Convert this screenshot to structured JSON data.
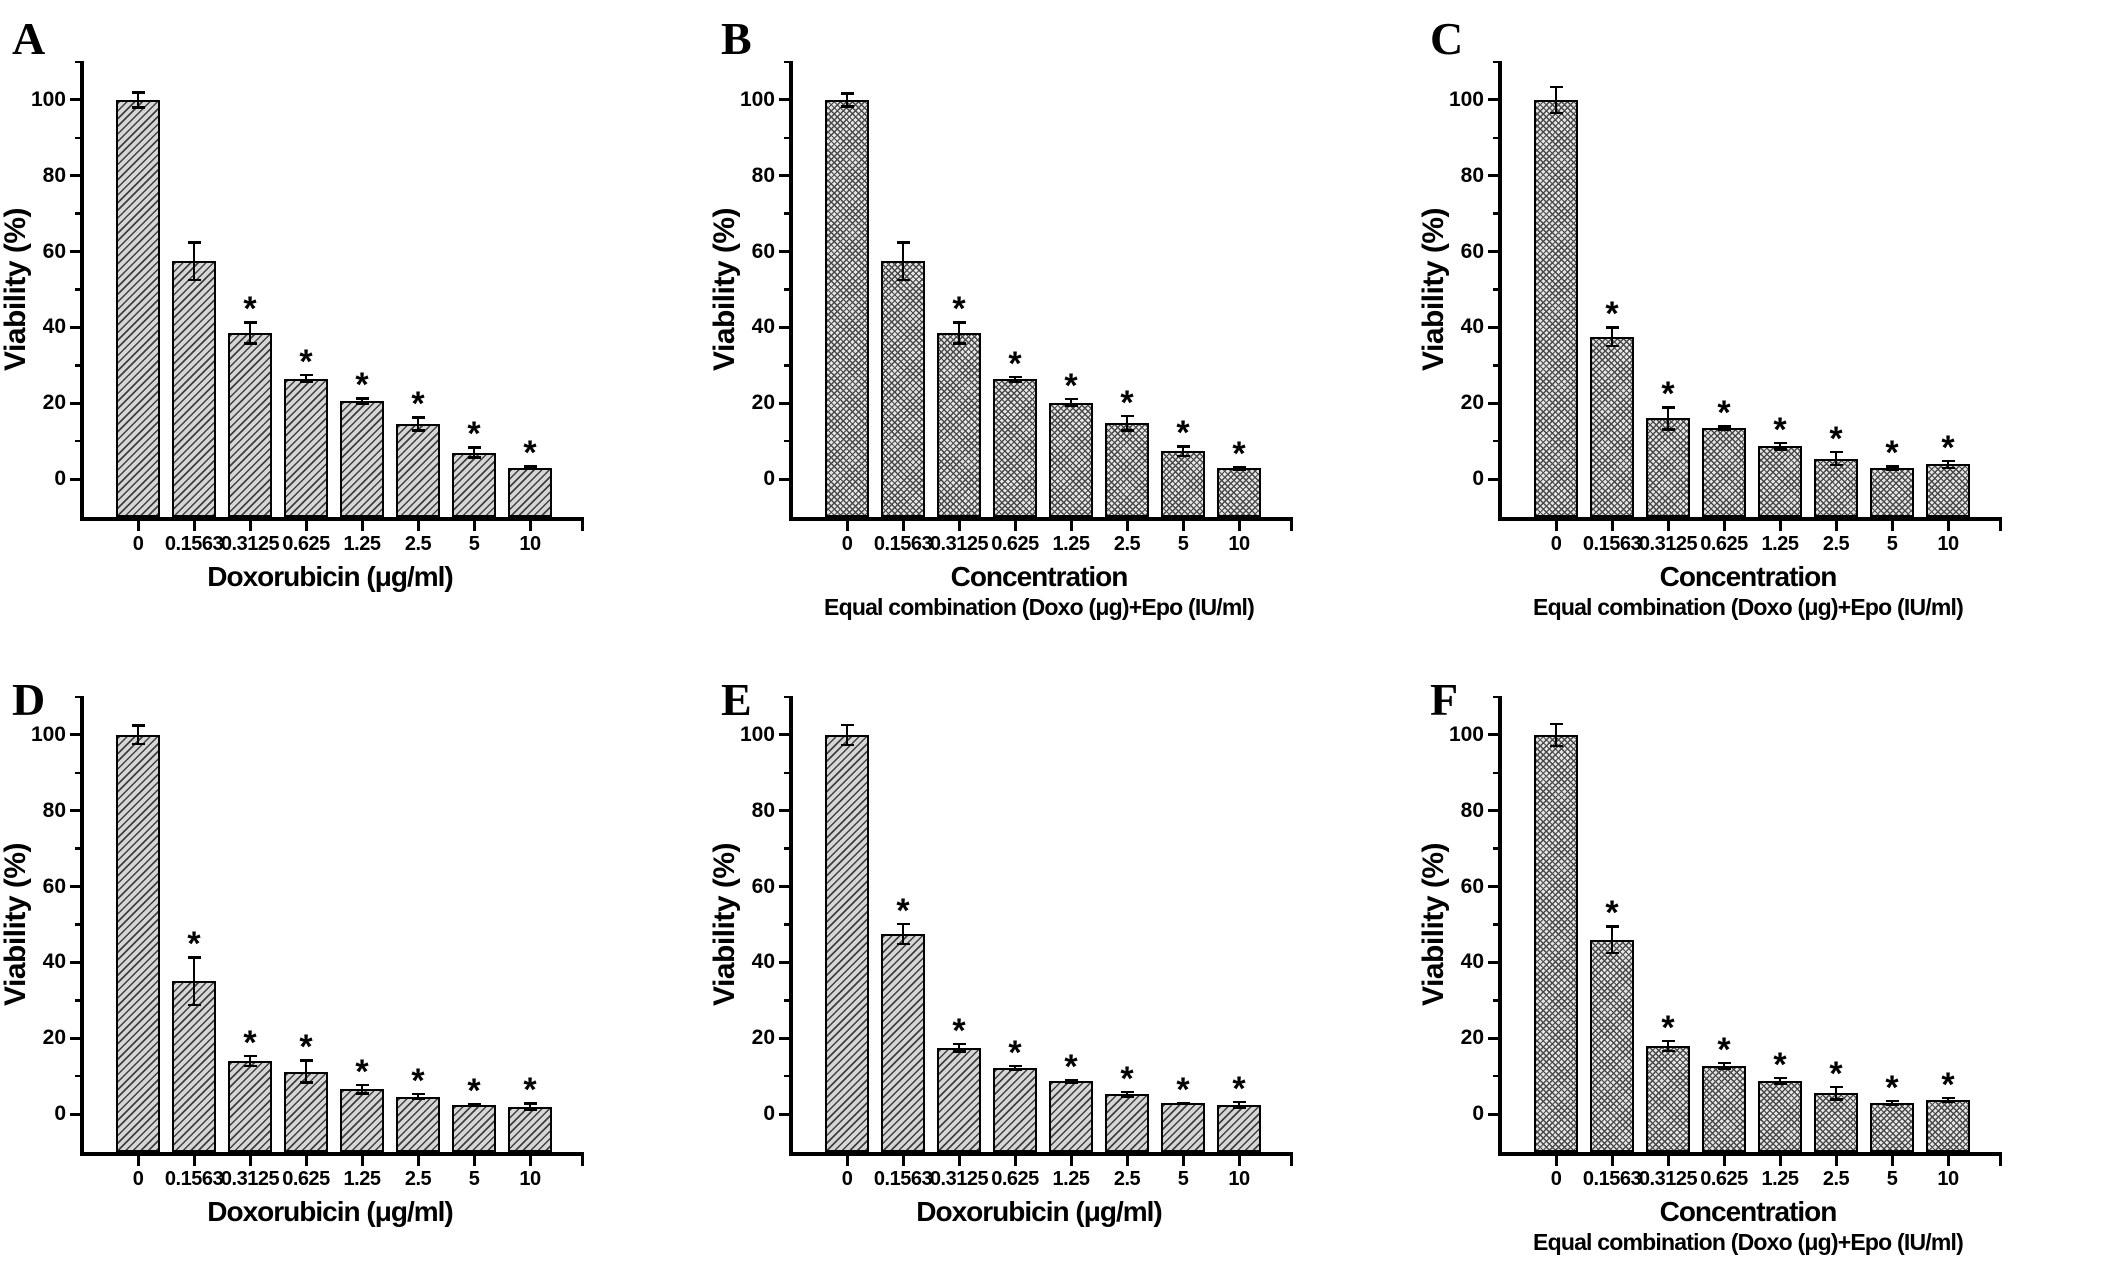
{
  "figure": {
    "ylabel": "Viability (%)",
    "categories": [
      "0",
      "0.1563",
      "0.3125",
      "0.625",
      "1.25",
      "2.5",
      "5",
      "10"
    ],
    "ytick_labels": [
      "0",
      "20",
      "40",
      "60",
      "80",
      "100"
    ],
    "significance_marker": "*",
    "bar_fill_color": "#d6d6d6",
    "hatch_line_color": "#3f3f3f",
    "axis_color": "#000000"
  },
  "chart_data": [
    {
      "type": "bar",
      "panel": "A",
      "xlabel": "Doxorubicin (μg/ml)",
      "xlabel2": "",
      "ylabel": "Viability (%)",
      "hatch": "diagonal",
      "categories": [
        "0",
        "0.1563",
        "0.3125",
        "0.625",
        "1.25",
        "2.5",
        "5",
        "10"
      ],
      "values": [
        100,
        57.5,
        38.5,
        26.5,
        20.5,
        14.5,
        7,
        3
      ],
      "errors": [
        2,
        5,
        2.8,
        1,
        0.8,
        1.8,
        1.4,
        0.4
      ],
      "significant": [
        false,
        false,
        true,
        true,
        true,
        true,
        true,
        true
      ],
      "ylim": [
        -10,
        110
      ],
      "yticks": [
        0,
        20,
        40,
        60,
        80,
        100
      ],
      "yticks_minor": [
        10,
        30,
        50,
        70,
        90,
        110
      ]
    },
    {
      "type": "bar",
      "panel": "B",
      "xlabel": "Concentration",
      "xlabel2": "Equal combination (Doxo (μg)+Epo (IU/ml)",
      "ylabel": "Viability (%)",
      "hatch": "crosshatch",
      "categories": [
        "0",
        "0.1563",
        "0.3125",
        "0.625",
        "1.25",
        "2.5",
        "5",
        "10"
      ],
      "values": [
        100,
        57.5,
        38.5,
        26.3,
        20.2,
        14.7,
        7.3,
        2.8
      ],
      "errors": [
        1.8,
        5,
        2.8,
        0.7,
        1,
        2,
        1.3,
        0.3
      ],
      "significant": [
        false,
        false,
        true,
        true,
        true,
        true,
        true,
        true
      ],
      "ylim": [
        -10,
        110
      ],
      "yticks": [
        0,
        20,
        40,
        60,
        80,
        100
      ],
      "yticks_minor": [
        10,
        30,
        50,
        70,
        90,
        110
      ]
    },
    {
      "type": "bar",
      "panel": "C",
      "xlabel": "Concentration",
      "xlabel2": "Equal combination (Doxo (μg)+Epo (IU/ml)",
      "ylabel": "Viability (%)",
      "hatch": "crosshatch",
      "categories": [
        "0",
        "0.1563",
        "0.3125",
        "0.625",
        "1.25",
        "2.5",
        "5",
        "10"
      ],
      "values": [
        100,
        37.5,
        16,
        13.5,
        8.7,
        5.4,
        2.9,
        3.9
      ],
      "errors": [
        3.5,
        2.5,
        3,
        0.5,
        0.9,
        1.8,
        0.5,
        1
      ],
      "significant": [
        false,
        true,
        true,
        true,
        true,
        true,
        true,
        true
      ],
      "ylim": [
        -10,
        110
      ],
      "yticks": [
        0,
        20,
        40,
        60,
        80,
        100
      ],
      "yticks_minor": [
        10,
        30,
        50,
        70,
        90,
        110
      ]
    },
    {
      "type": "bar",
      "panel": "D",
      "xlabel": "Doxorubicin (μg/ml)",
      "xlabel2": "",
      "ylabel": "Viability (%)",
      "hatch": "diagonal",
      "categories": [
        "0",
        "0.1563",
        "0.3125",
        "0.625",
        "1.25",
        "2.5",
        "5",
        "10"
      ],
      "values": [
        100,
        35,
        14,
        11.2,
        6.6,
        4.6,
        2.4,
        2
      ],
      "errors": [
        2.5,
        6.3,
        1.4,
        3,
        1.2,
        0.7,
        0.3,
        0.8
      ],
      "significant": [
        false,
        true,
        true,
        true,
        true,
        true,
        true,
        true
      ],
      "ylim": [
        -10,
        110
      ],
      "yticks": [
        0,
        20,
        40,
        60,
        80,
        100
      ],
      "yticks_minor": [
        10,
        30,
        50,
        70,
        90,
        110
      ]
    },
    {
      "type": "bar",
      "panel": "E",
      "xlabel": "Doxorubicin (μg/ml)",
      "xlabel2": "",
      "ylabel": "Viability (%)",
      "hatch": "diagonal",
      "categories": [
        "0",
        "0.1563",
        "0.3125",
        "0.625",
        "1.25",
        "2.5",
        "5",
        "10"
      ],
      "values": [
        100,
        47.5,
        17.5,
        12.2,
        8.6,
        5.2,
        2.8,
        2.4
      ],
      "errors": [
        2.7,
        2.7,
        1,
        0.5,
        0.4,
        0.7,
        0.2,
        0.8
      ],
      "significant": [
        false,
        true,
        true,
        true,
        true,
        true,
        true,
        true
      ],
      "ylim": [
        -10,
        110
      ],
      "yticks": [
        0,
        20,
        40,
        60,
        80,
        100
      ],
      "yticks_minor": [
        10,
        30,
        50,
        70,
        90,
        110
      ]
    },
    {
      "type": "bar",
      "panel": "F",
      "xlabel": "Concentration",
      "xlabel2": "Equal combination (Doxo (μg)+Epo (IU/ml)",
      "ylabel": "Viability (%)",
      "hatch": "crosshatch",
      "categories": [
        "0",
        "0.1563",
        "0.3125",
        "0.625",
        "1.25",
        "2.5",
        "5",
        "10"
      ],
      "values": [
        100,
        46,
        18,
        12.7,
        8.8,
        5.5,
        3,
        3.7
      ],
      "errors": [
        3,
        3.6,
        1.4,
        0.8,
        0.8,
        1.7,
        0.5,
        0.6
      ],
      "significant": [
        false,
        true,
        true,
        true,
        true,
        true,
        true,
        true
      ],
      "ylim": [
        -10,
        110
      ],
      "yticks": [
        0,
        20,
        40,
        60,
        80,
        100
      ],
      "yticks_minor": [
        10,
        30,
        50,
        70,
        90,
        110
      ]
    }
  ]
}
